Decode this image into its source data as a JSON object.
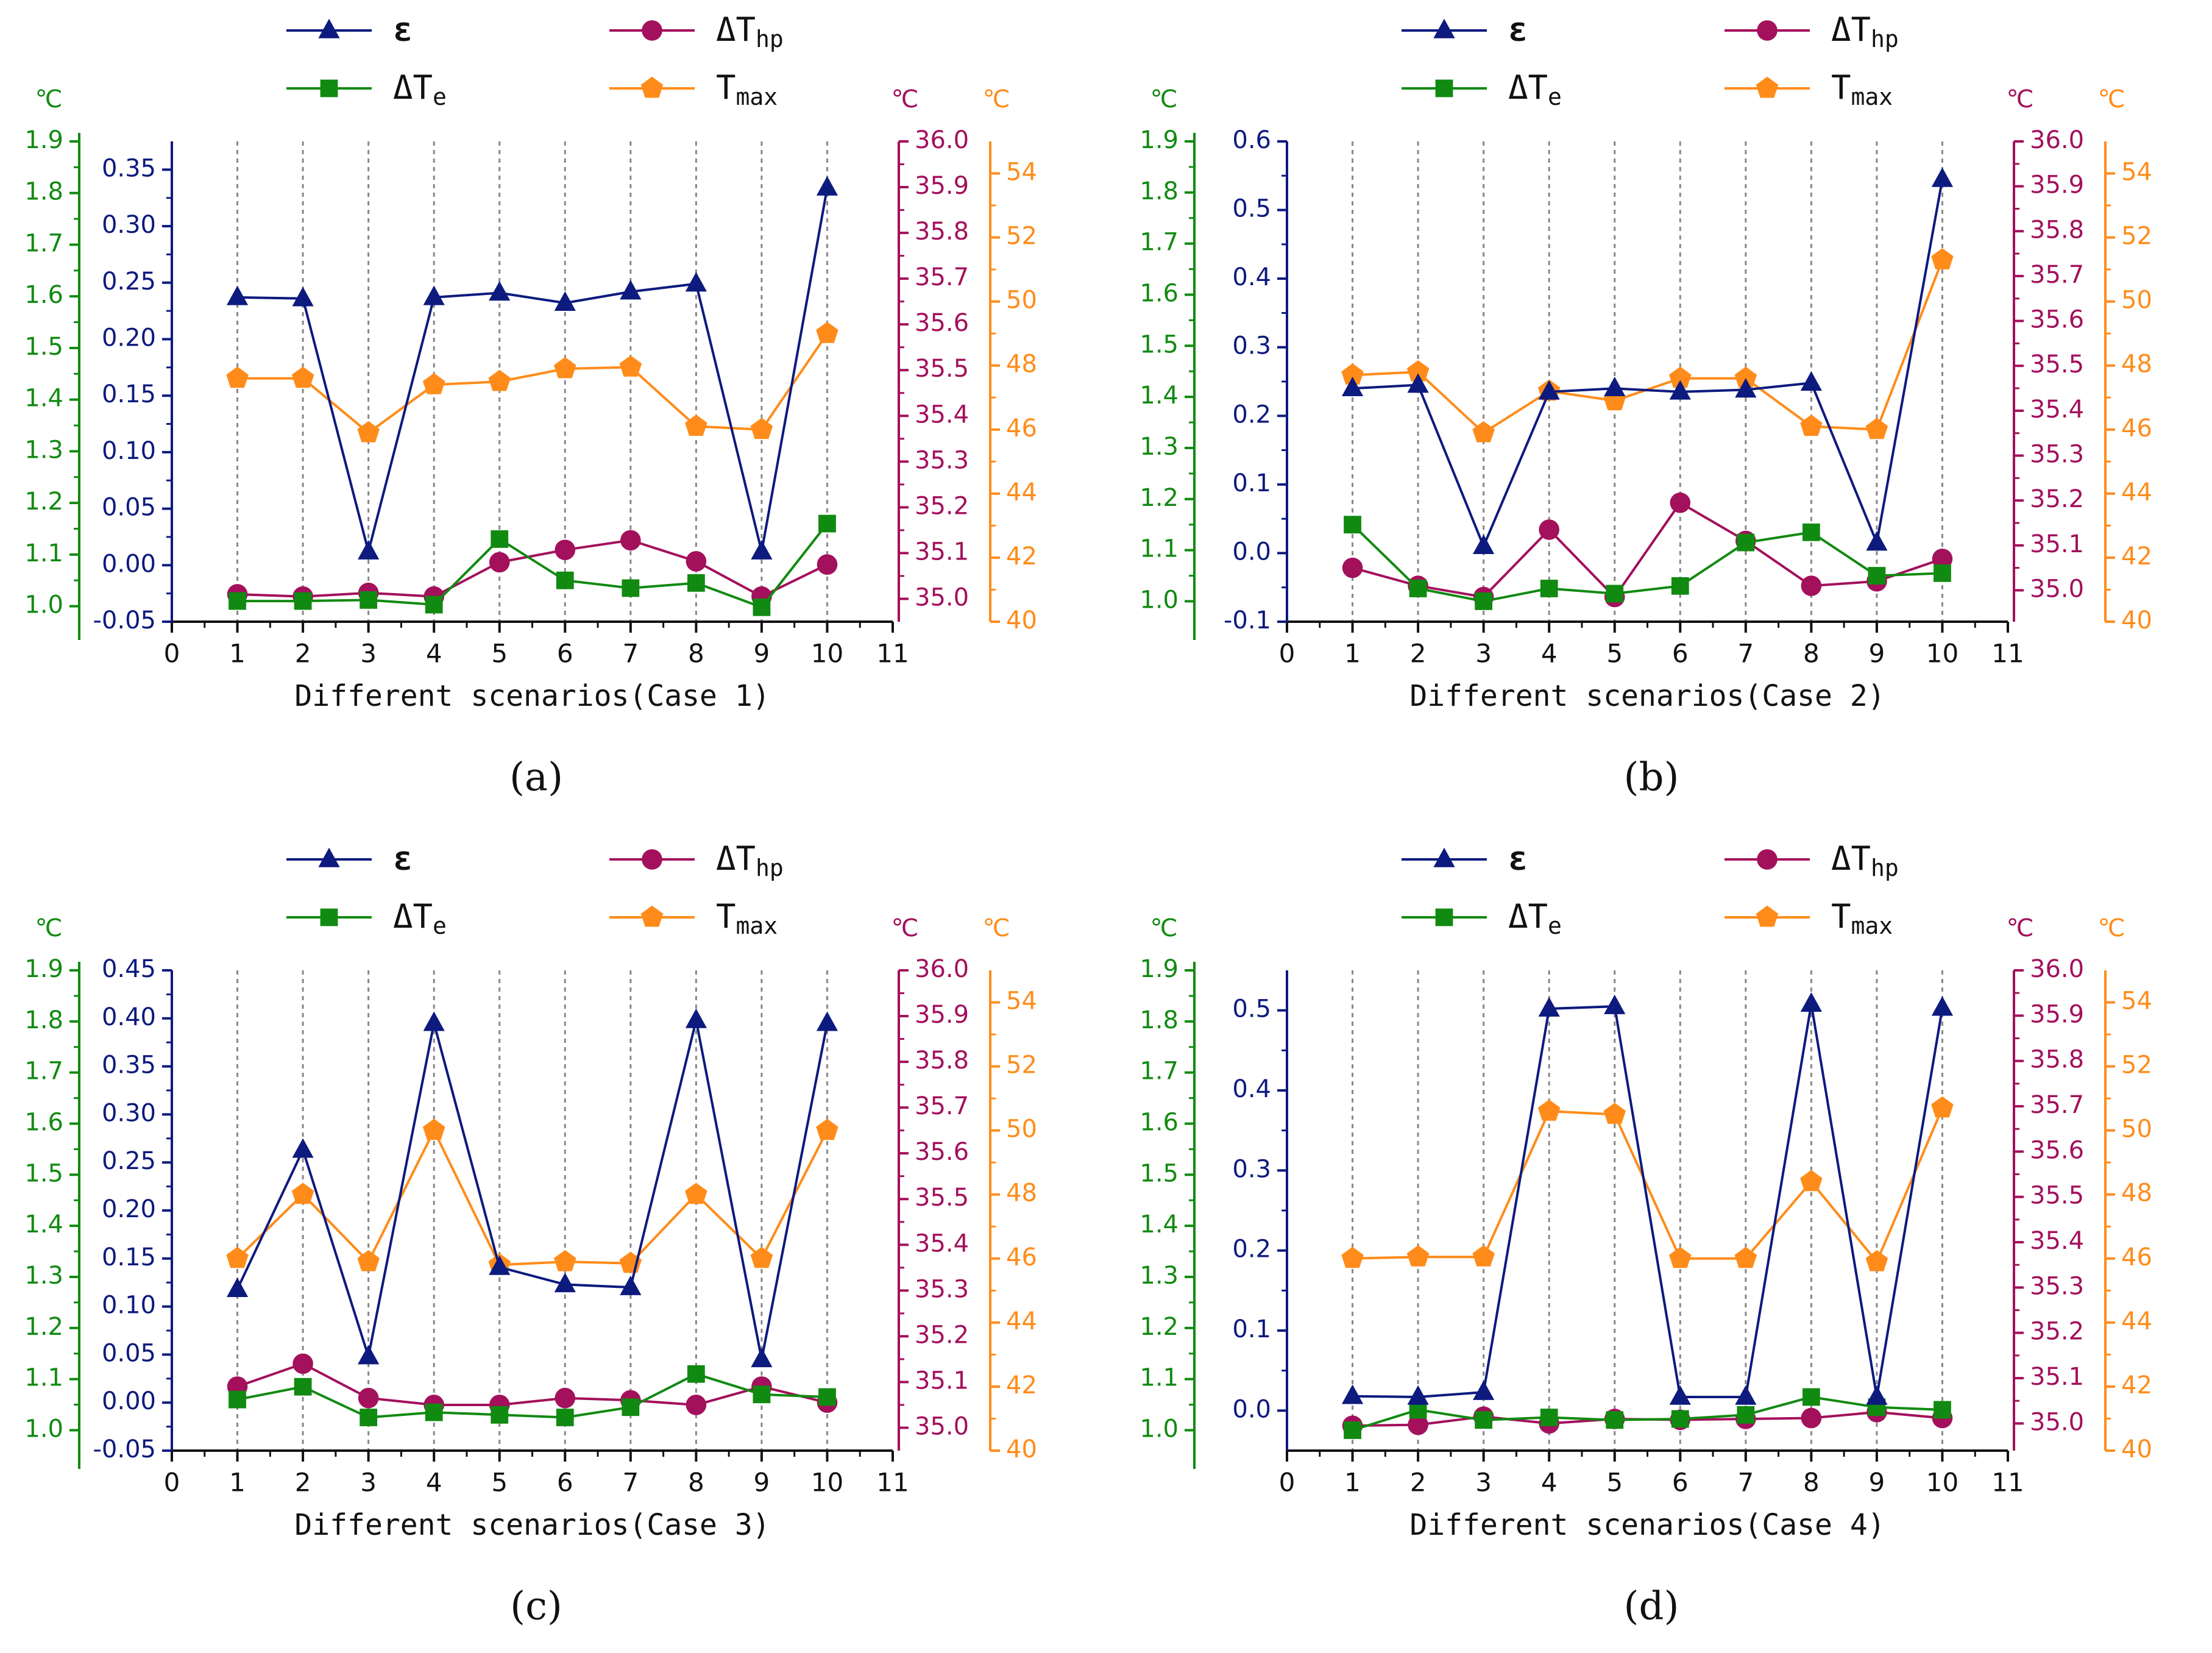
{
  "colors": {
    "eps": "#0d1a7e",
    "dTe": "#118a11",
    "dThp": "#a3105c",
    "tmax": "#ff8c1a",
    "grid": "#888888",
    "text": "#111111"
  },
  "chart_data": [
    {
      "type": "line",
      "panel_label": "(a)",
      "xlabel": "Different scenarios(Case 1)",
      "x_ticks": [
        "0",
        "1",
        "2",
        "3",
        "4",
        "5",
        "6",
        "7",
        "8",
        "9",
        "10",
        "11"
      ],
      "xlim": [
        0,
        11
      ],
      "legend": [
        {
          "key": "eps",
          "label": "ε",
          "sub": ""
        },
        {
          "key": "dThp",
          "label": "ΔT",
          "sub": "hp"
        },
        {
          "key": "dTe",
          "label": "ΔT",
          "sub": "e"
        },
        {
          "key": "tmax",
          "label": "T",
          "sub": "max"
        }
      ],
      "axes": {
        "dTe": {
          "unit": "℃",
          "ylim": [
            0.97,
            1.9
          ],
          "ticks": [
            "1.0",
            "1.1",
            "1.2",
            "1.3",
            "1.4",
            "1.5",
            "1.6",
            "1.7",
            "1.8",
            "1.9"
          ]
        },
        "eps": {
          "unit": "",
          "ylim": [
            -0.05,
            0.375
          ],
          "ticks": [
            "-0.05",
            "0.00",
            "0.05",
            "0.10",
            "0.15",
            "0.20",
            "0.25",
            "0.30",
            "0.35"
          ]
        },
        "dThp": {
          "unit": "℃",
          "ylim": [
            34.95,
            36.0
          ],
          "ticks": [
            "35.0",
            "35.1",
            "35.2",
            "35.3",
            "35.4",
            "35.5",
            "35.6",
            "35.7",
            "35.8",
            "35.9",
            "36.0"
          ]
        },
        "tmax": {
          "unit": "℃",
          "ylim": [
            40,
            55
          ],
          "ticks": [
            "40",
            "42",
            "44",
            "46",
            "48",
            "50",
            "52",
            "54"
          ]
        }
      },
      "series": [
        {
          "key": "eps",
          "name": "ε",
          "marker": "triangle",
          "x": [
            1,
            2,
            3,
            4,
            5,
            6,
            7,
            8,
            9,
            10
          ],
          "values": [
            0.237,
            0.236,
            0.012,
            0.237,
            0.241,
            0.232,
            0.242,
            0.249,
            0.012,
            0.334
          ]
        },
        {
          "key": "dTe",
          "name": "ΔTe",
          "marker": "square",
          "x": [
            1,
            2,
            3,
            4,
            5,
            6,
            7,
            8,
            9,
            10
          ],
          "values": [
            1.01,
            1.01,
            1.012,
            1.003,
            1.13,
            1.05,
            1.035,
            1.045,
            0.998,
            1.16
          ]
        },
        {
          "key": "dThp",
          "name": "ΔThp",
          "marker": "circle",
          "x": [
            1,
            2,
            3,
            4,
            5,
            6,
            7,
            8,
            9,
            10
          ],
          "values": [
            35.01,
            35.005,
            35.013,
            35.005,
            35.08,
            35.107,
            35.128,
            35.082,
            35.005,
            35.075
          ]
        },
        {
          "key": "tmax",
          "name": "Tmax",
          "marker": "pentagon",
          "x": [
            1,
            2,
            3,
            4,
            5,
            6,
            7,
            8,
            9,
            10
          ],
          "values": [
            47.6,
            47.6,
            45.9,
            47.4,
            47.5,
            47.9,
            47.95,
            46.1,
            46.0,
            49.0
          ]
        }
      ]
    },
    {
      "type": "line",
      "panel_label": "(b)",
      "xlabel": "Different scenarios(Case 2)",
      "x_ticks": [
        "0",
        "1",
        "2",
        "3",
        "4",
        "5",
        "6",
        "7",
        "8",
        "9",
        "10",
        "11"
      ],
      "xlim": [
        0,
        11
      ],
      "legend": [
        {
          "key": "eps",
          "label": "ε",
          "sub": ""
        },
        {
          "key": "dThp",
          "label": "ΔT",
          "sub": "hp"
        },
        {
          "key": "dTe",
          "label": "ΔT",
          "sub": "e"
        },
        {
          "key": "tmax",
          "label": "T",
          "sub": "max"
        }
      ],
      "axes": {
        "dTe": {
          "unit": "℃",
          "ylim": [
            0.96,
            1.9
          ],
          "ticks": [
            "1.0",
            "1.1",
            "1.2",
            "1.3",
            "1.4",
            "1.5",
            "1.6",
            "1.7",
            "1.8",
            "1.9"
          ]
        },
        "eps": {
          "unit": "",
          "ylim": [
            -0.1,
            0.6
          ],
          "ticks": [
            "-0.1",
            "0.0",
            "0.1",
            "0.2",
            "0.3",
            "0.4",
            "0.5",
            "0.6"
          ]
        },
        "dThp": {
          "unit": "℃",
          "ylim": [
            34.93,
            36.0
          ],
          "ticks": [
            "35.0",
            "35.1",
            "35.2",
            "35.3",
            "35.4",
            "35.5",
            "35.6",
            "35.7",
            "35.8",
            "35.9",
            "36.0"
          ]
        },
        "tmax": {
          "unit": "℃",
          "ylim": [
            40,
            55
          ],
          "ticks": [
            "40",
            "42",
            "44",
            "46",
            "48",
            "50",
            "52",
            "54"
          ]
        }
      },
      "series": [
        {
          "key": "eps",
          "name": "ε",
          "marker": "triangle",
          "x": [
            1,
            2,
            3,
            4,
            5,
            6,
            7,
            8,
            9,
            10
          ],
          "values": [
            0.24,
            0.245,
            0.01,
            0.235,
            0.24,
            0.235,
            0.238,
            0.248,
            0.015,
            0.545
          ]
        },
        {
          "key": "dTe",
          "name": "ΔTe",
          "marker": "square",
          "x": [
            1,
            2,
            3,
            4,
            5,
            6,
            7,
            8,
            9,
            10
          ],
          "values": [
            1.15,
            1.025,
            1.0,
            1.025,
            1.015,
            1.03,
            1.115,
            1.135,
            1.05,
            1.055
          ]
        },
        {
          "key": "dThp",
          "name": "ΔThp",
          "marker": "circle",
          "x": [
            1,
            2,
            3,
            4,
            5,
            6,
            7,
            8,
            9,
            10
          ],
          "values": [
            35.05,
            35.01,
            34.985,
            35.135,
            34.985,
            35.195,
            35.11,
            35.01,
            35.02,
            35.07
          ]
        },
        {
          "key": "tmax",
          "name": "Tmax",
          "marker": "pentagon",
          "x": [
            1,
            2,
            3,
            4,
            5,
            6,
            7,
            8,
            9,
            10
          ],
          "values": [
            47.7,
            47.8,
            45.9,
            47.2,
            46.9,
            47.6,
            47.6,
            46.1,
            46.0,
            51.3
          ]
        }
      ]
    },
    {
      "type": "line",
      "panel_label": "(c)",
      "xlabel": "Different scenarios(Case 3)",
      "x_ticks": [
        "0",
        "1",
        "2",
        "3",
        "4",
        "5",
        "6",
        "7",
        "8",
        "9",
        "10",
        "11"
      ],
      "xlim": [
        0,
        11
      ],
      "legend": [
        {
          "key": "eps",
          "label": "ε",
          "sub": ""
        },
        {
          "key": "dThp",
          "label": "ΔT",
          "sub": "hp"
        },
        {
          "key": "dTe",
          "label": "ΔT",
          "sub": "e"
        },
        {
          "key": "tmax",
          "label": "T",
          "sub": "max"
        }
      ],
      "axes": {
        "dTe": {
          "unit": "℃",
          "ylim": [
            0.96,
            1.9
          ],
          "ticks": [
            "1.0",
            "1.1",
            "1.2",
            "1.3",
            "1.4",
            "1.5",
            "1.6",
            "1.7",
            "1.8",
            "1.9"
          ]
        },
        "eps": {
          "unit": "",
          "ylim": [
            -0.05,
            0.45
          ],
          "ticks": [
            "-0.05",
            "0.00",
            "0.05",
            "0.10",
            "0.15",
            "0.20",
            "0.25",
            "0.30",
            "0.35",
            "0.40",
            "0.45"
          ]
        },
        "dThp": {
          "unit": "℃",
          "ylim": [
            34.95,
            36.0
          ],
          "ticks": [
            "35.0",
            "35.1",
            "35.2",
            "35.3",
            "35.4",
            "35.5",
            "35.6",
            "35.7",
            "35.8",
            "35.9",
            "36.0"
          ]
        },
        "tmax": {
          "unit": "℃",
          "ylim": [
            40,
            55
          ],
          "ticks": [
            "40",
            "42",
            "44",
            "46",
            "48",
            "50",
            "52",
            "54"
          ]
        }
      },
      "series": [
        {
          "key": "eps",
          "name": "ε",
          "marker": "triangle",
          "x": [
            1,
            2,
            3,
            4,
            5,
            6,
            7,
            8,
            9,
            10
          ],
          "values": [
            0.118,
            0.263,
            0.048,
            0.395,
            0.141,
            0.123,
            0.12,
            0.398,
            0.045,
            0.395
          ]
        },
        {
          "key": "dTe",
          "name": "ΔTe",
          "marker": "square",
          "x": [
            1,
            2,
            3,
            4,
            5,
            6,
            7,
            8,
            9,
            10
          ],
          "values": [
            1.06,
            1.085,
            1.025,
            1.035,
            1.03,
            1.025,
            1.045,
            1.11,
            1.07,
            1.065
          ]
        },
        {
          "key": "dThp",
          "name": "ΔThp",
          "marker": "circle",
          "x": [
            1,
            2,
            3,
            4,
            5,
            6,
            7,
            8,
            9,
            10
          ],
          "values": [
            35.09,
            35.14,
            35.065,
            35.05,
            35.05,
            35.065,
            35.06,
            35.05,
            35.09,
            35.055
          ]
        },
        {
          "key": "tmax",
          "name": "Tmax",
          "marker": "pentagon",
          "x": [
            1,
            2,
            3,
            4,
            5,
            6,
            7,
            8,
            9,
            10
          ],
          "values": [
            46.0,
            48.0,
            45.9,
            50.0,
            45.8,
            45.9,
            45.85,
            48.0,
            46.0,
            50.0
          ]
        }
      ]
    },
    {
      "type": "line",
      "panel_label": "(d)",
      "xlabel": "Different scenarios(Case 4)",
      "x_ticks": [
        "0",
        "1",
        "2",
        "3",
        "4",
        "5",
        "6",
        "7",
        "8",
        "9",
        "10",
        "11"
      ],
      "xlim": [
        0,
        11
      ],
      "legend": [
        {
          "key": "eps",
          "label": "ε",
          "sub": ""
        },
        {
          "key": "dThp",
          "label": "ΔT",
          "sub": "hp"
        },
        {
          "key": "dTe",
          "label": "ΔT",
          "sub": "e"
        },
        {
          "key": "tmax",
          "label": "T",
          "sub": "max"
        }
      ],
      "axes": {
        "dTe": {
          "unit": "℃",
          "ylim": [
            0.96,
            1.9
          ],
          "ticks": [
            "1.0",
            "1.1",
            "1.2",
            "1.3",
            "1.4",
            "1.5",
            "1.6",
            "1.7",
            "1.8",
            "1.9"
          ]
        },
        "eps": {
          "unit": "",
          "ylim": [
            -0.05,
            0.55
          ],
          "ticks": [
            "0.0",
            "0.1",
            "0.2",
            "0.3",
            "0.4",
            "0.5"
          ]
        },
        "dThp": {
          "unit": "℃",
          "ylim": [
            34.94,
            36.0
          ],
          "ticks": [
            "35.0",
            "35.1",
            "35.2",
            "35.3",
            "35.4",
            "35.5",
            "35.6",
            "35.7",
            "35.8",
            "35.9",
            "36.0"
          ]
        },
        "tmax": {
          "unit": "℃",
          "ylim": [
            40,
            55
          ],
          "ticks": [
            "40",
            "42",
            "44",
            "46",
            "48",
            "50",
            "52",
            "54"
          ]
        }
      },
      "series": [
        {
          "key": "eps",
          "name": "ε",
          "marker": "triangle",
          "x": [
            1,
            2,
            3,
            4,
            5,
            6,
            7,
            8,
            9,
            10
          ],
          "values": [
            0.018,
            0.017,
            0.023,
            0.502,
            0.505,
            0.017,
            0.017,
            0.508,
            0.017,
            0.503
          ]
        },
        {
          "key": "dTe",
          "name": "ΔTe",
          "marker": "square",
          "x": [
            1,
            2,
            3,
            4,
            5,
            6,
            7,
            8,
            9,
            10
          ],
          "values": [
            1.0,
            1.04,
            1.02,
            1.025,
            1.02,
            1.022,
            1.03,
            1.065,
            1.045,
            1.04
          ]
        },
        {
          "key": "dThp",
          "name": "ΔThp",
          "marker": "circle",
          "x": [
            1,
            2,
            3,
            4,
            5,
            6,
            7,
            8,
            9,
            10
          ],
          "values": [
            34.995,
            34.997,
            35.015,
            35.0,
            35.01,
            35.008,
            35.01,
            35.012,
            35.025,
            35.012
          ]
        },
        {
          "key": "tmax",
          "name": "Tmax",
          "marker": "pentagon",
          "x": [
            1,
            2,
            3,
            4,
            5,
            6,
            7,
            8,
            9,
            10
          ],
          "values": [
            46.0,
            46.05,
            46.05,
            50.6,
            50.5,
            46.0,
            46.0,
            48.4,
            45.9,
            50.7
          ]
        }
      ]
    }
  ]
}
